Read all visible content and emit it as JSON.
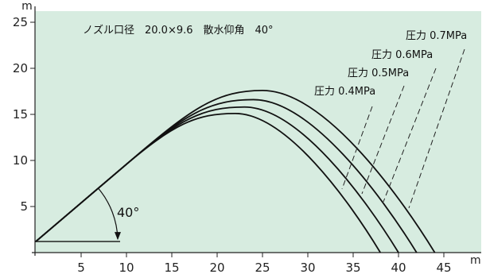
{
  "chart_data": {
    "type": "line",
    "header_note": "ノズル口径　20.0×9.6　散水仰角　40°",
    "xlabel": "m",
    "ylabel": "m",
    "xlim": [
      0,
      47
    ],
    "ylim": [
      0,
      25
    ],
    "x_ticks": [
      5,
      10,
      15,
      20,
      25,
      30,
      35,
      40,
      45
    ],
    "y_ticks": [
      5,
      10,
      15,
      20,
      25
    ],
    "grid": false,
    "background_color": "#d7ece0",
    "line_color": "#111111",
    "launch_height": 1.2,
    "launch_angle_label": "40°",
    "series": [
      {
        "name": "圧力 0.4MPa",
        "range": 38.0,
        "apex_x": 22.0,
        "apex_y": 15.1
      },
      {
        "name": "圧力 0.5MPa",
        "range": 40.0,
        "apex_x": 23.0,
        "apex_y": 15.8
      },
      {
        "name": "圧力 0.6MPa",
        "range": 42.0,
        "apex_x": 24.0,
        "apex_y": 16.6
      },
      {
        "name": "圧力 0.7MPa",
        "range": 44.0,
        "apex_x": 25.0,
        "apex_y": 17.6
      }
    ]
  }
}
